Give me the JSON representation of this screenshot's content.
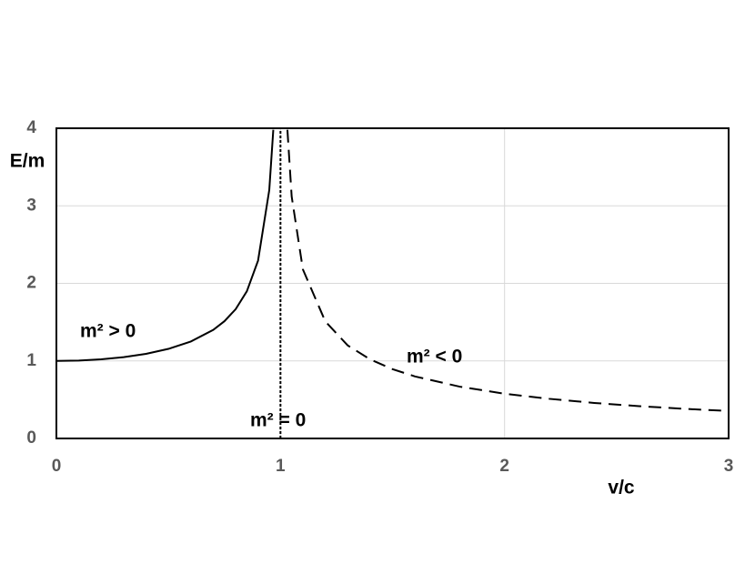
{
  "chart_data": {
    "type": "line",
    "x_label": "v/c",
    "y_label": "E/m",
    "xlim": [
      0,
      3
    ],
    "ylim": [
      0,
      4
    ],
    "xticks": [
      0,
      1,
      2,
      3
    ],
    "yticks": [
      0,
      1,
      2,
      3,
      4
    ],
    "grid": true,
    "series": [
      {
        "name": "m² > 0",
        "color": "#000000",
        "style": "solid",
        "x": [
          0,
          0.1,
          0.2,
          0.3,
          0.4,
          0.5,
          0.6,
          0.7,
          0.75,
          0.8,
          0.85,
          0.9,
          0.95,
          0.968
        ],
        "values": [
          1,
          1.005,
          1.021,
          1.048,
          1.091,
          1.155,
          1.25,
          1.4,
          1.512,
          1.667,
          1.898,
          2.294,
          3.203,
          3.98
        ]
      },
      {
        "name": "m² = 0",
        "color": "#000000",
        "style": "dotted",
        "x": [
          1,
          1
        ],
        "values": [
          0,
          4
        ]
      },
      {
        "name": "m² < 0",
        "color": "#000000",
        "style": "dashed",
        "x": [
          1.031,
          1.05,
          1.1,
          1.2,
          1.3,
          1.4,
          1.5,
          1.6,
          1.8,
          2,
          2.2,
          2.4,
          2.6,
          2.8,
          3
        ],
        "values": [
          3.98,
          3.12,
          2.18,
          1.51,
          1.2,
          1.02,
          0.894,
          0.8,
          0.668,
          0.577,
          0.511,
          0.458,
          0.417,
          0.382,
          0.354
        ]
      }
    ]
  }
}
